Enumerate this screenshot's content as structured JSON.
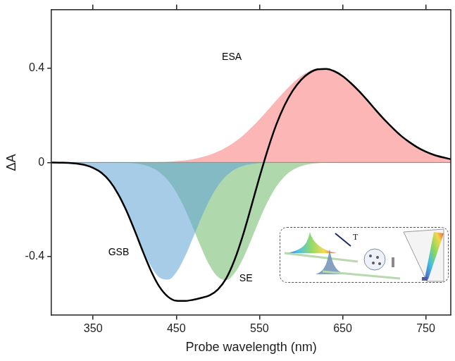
{
  "chart_data": {
    "type": "line",
    "x_label": "Probe wavelength (nm)",
    "y_label": "ΔA",
    "x": [
      300,
      310,
      320,
      330,
      340,
      350,
      360,
      370,
      380,
      390,
      400,
      410,
      420,
      430,
      440,
      450,
      460,
      470,
      480,
      490,
      500,
      510,
      520,
      530,
      540,
      550,
      560,
      570,
      580,
      590,
      600,
      610,
      620,
      630,
      640,
      650,
      660,
      670,
      680,
      690,
      700,
      710,
      720,
      730,
      740,
      750,
      760,
      770,
      780
    ],
    "xlim": [
      300,
      780
    ],
    "xticks": [
      350,
      450,
      550,
      650,
      750
    ],
    "ylim": [
      -0.65,
      0.65
    ],
    "yticks": [
      -0.4,
      0,
      0.4
    ],
    "grid": false,
    "series": [
      {
        "name": "GSB",
        "type": "area",
        "color": "#5fa3d6",
        "values": [
          0,
          -0.001,
          -0.002,
          -0.005,
          -0.011,
          -0.023,
          -0.044,
          -0.08,
          -0.133,
          -0.203,
          -0.286,
          -0.371,
          -0.444,
          -0.49,
          -0.498,
          -0.467,
          -0.403,
          -0.321,
          -0.235,
          -0.159,
          -0.099,
          -0.057,
          -0.03,
          -0.015,
          -0.007,
          -0.003,
          -0.001,
          0,
          0,
          0,
          0,
          0,
          0,
          0,
          0,
          0,
          0,
          0,
          0,
          0,
          0,
          0,
          0,
          0,
          0,
          0,
          0,
          0,
          0
        ]
      },
      {
        "name": "SE",
        "type": "area",
        "color": "#6db86a",
        "values": [
          0,
          0,
          0,
          0,
          0,
          0,
          0,
          0,
          -0.001,
          -0.002,
          -0.004,
          -0.01,
          -0.021,
          -0.042,
          -0.076,
          -0.127,
          -0.195,
          -0.277,
          -0.363,
          -0.438,
          -0.487,
          -0.5,
          -0.471,
          -0.41,
          -0.329,
          -0.243,
          -0.166,
          -0.104,
          -0.06,
          -0.032,
          -0.016,
          -0.007,
          -0.003,
          -0.001,
          0,
          0,
          0,
          0,
          0,
          0,
          0,
          0,
          0,
          0,
          0,
          0,
          0,
          0,
          0
        ]
      },
      {
        "name": "ESA",
        "type": "area",
        "color": "#fa7a7a",
        "values": [
          0,
          0,
          0,
          0,
          0,
          0,
          0,
          0,
          0,
          0,
          0,
          0.001,
          0.001,
          0.002,
          0.003,
          0.006,
          0.009,
          0.014,
          0.022,
          0.032,
          0.046,
          0.064,
          0.087,
          0.114,
          0.147,
          0.183,
          0.222,
          0.263,
          0.302,
          0.337,
          0.367,
          0.388,
          0.399,
          0.399,
          0.388,
          0.367,
          0.337,
          0.302,
          0.263,
          0.222,
          0.183,
          0.147,
          0.114,
          0.087,
          0.064,
          0.046,
          0.032,
          0.022,
          0.014
        ]
      },
      {
        "type": "line",
        "color": "#000000",
        "values": [
          0,
          -0.001,
          -0.002,
          -0.005,
          -0.011,
          -0.023,
          -0.044,
          -0.08,
          -0.134,
          -0.205,
          -0.29,
          -0.38,
          -0.464,
          -0.53,
          -0.571,
          -0.588,
          -0.589,
          -0.584,
          -0.576,
          -0.565,
          -0.54,
          -0.493,
          -0.415,
          -0.311,
          -0.189,
          -0.063,
          0.055,
          0.159,
          0.242,
          0.305,
          0.351,
          0.381,
          0.396,
          0.398,
          0.388,
          0.367,
          0.337,
          0.302,
          0.263,
          0.222,
          0.183,
          0.147,
          0.114,
          0.087,
          0.064,
          0.046,
          0.032,
          0.022,
          0.014
        ]
      }
    ]
  },
  "inset": {
    "label": "T"
  }
}
